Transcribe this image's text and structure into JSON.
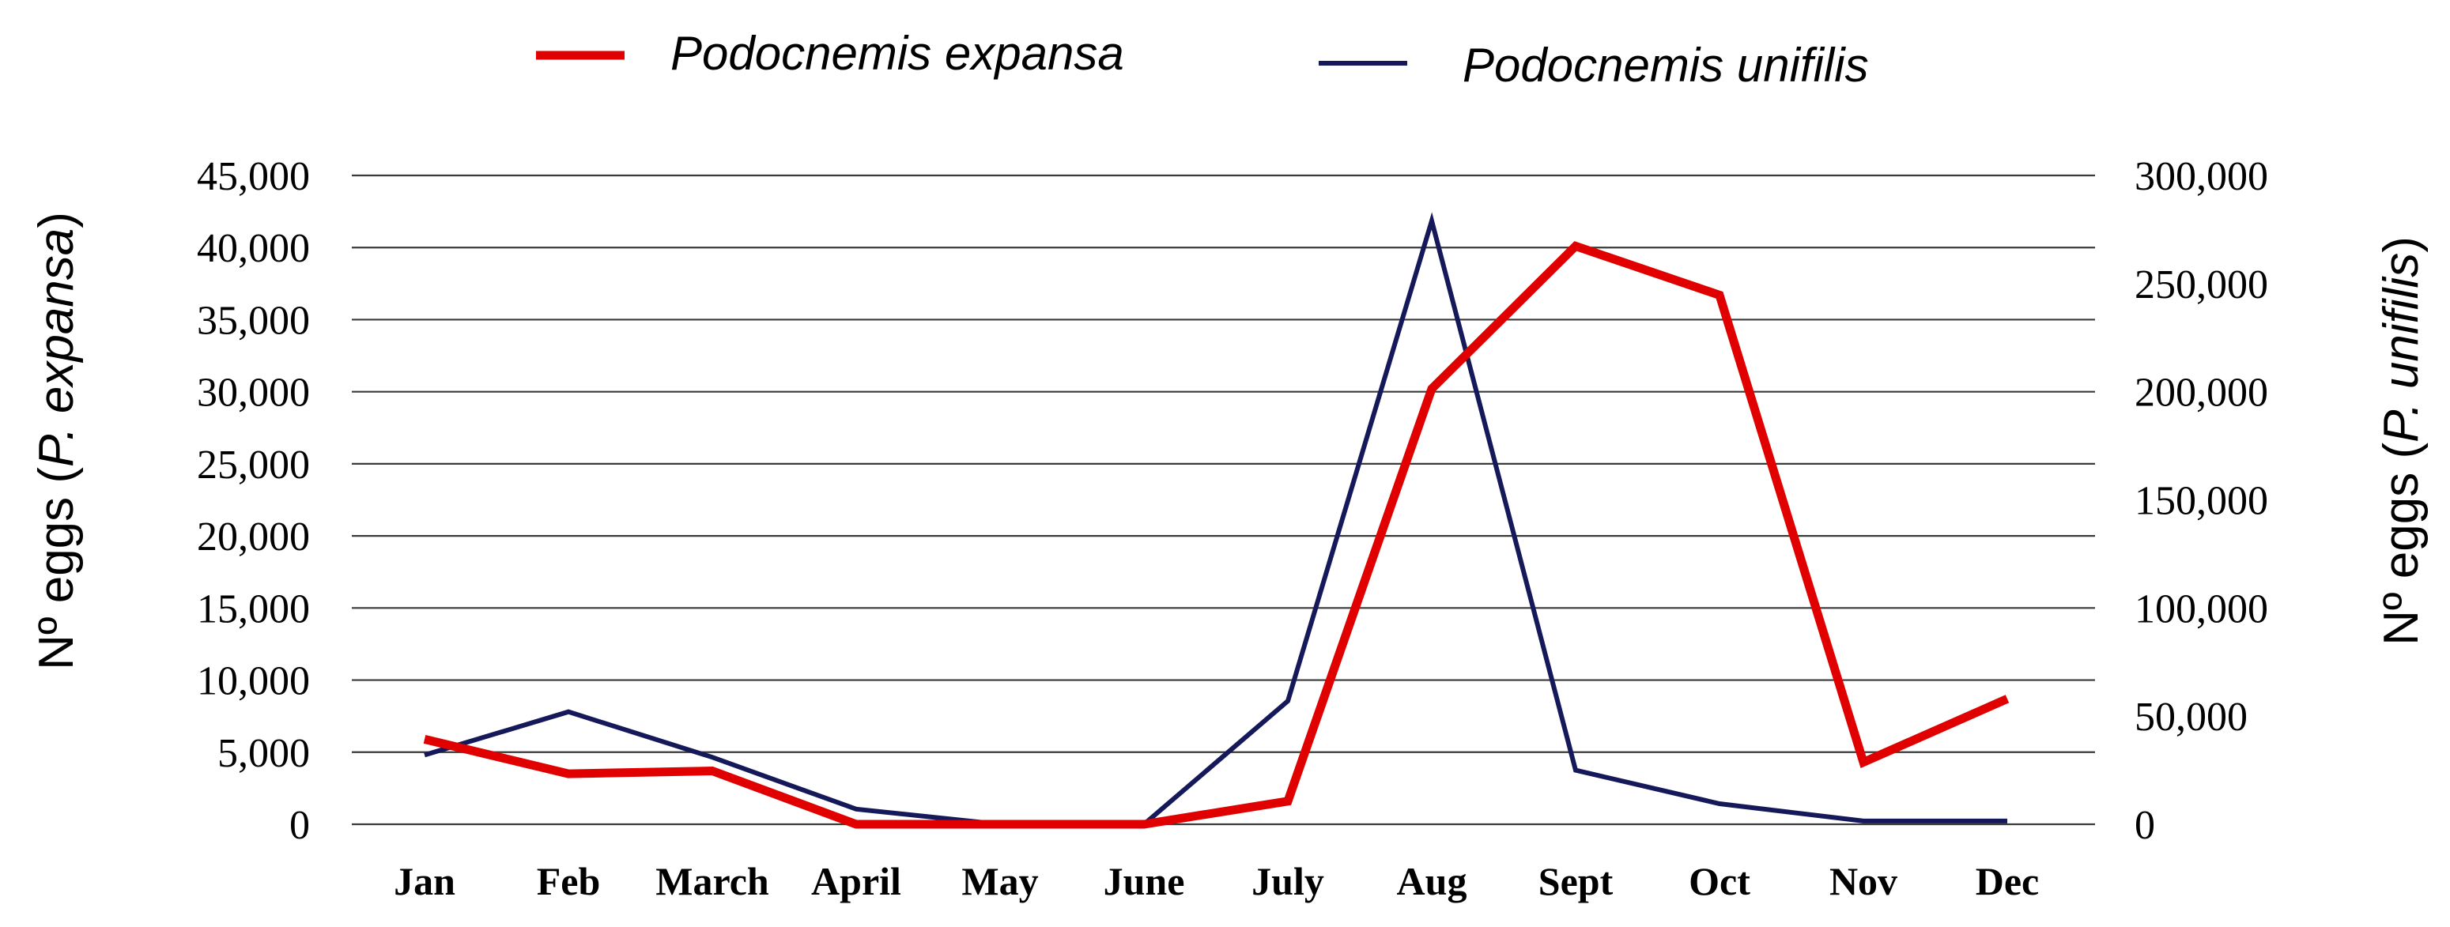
{
  "chart_data": {
    "type": "line",
    "categories": [
      "Jan",
      "Feb",
      "March",
      "April",
      "May",
      "June",
      "July",
      "Aug",
      "Sept",
      "Oct",
      "Nov",
      "Dec"
    ],
    "series": [
      {
        "name": "Podocnemis expansa",
        "axis": "left",
        "color": "#e00000",
        "values": [
          5900,
          3500,
          3700,
          0,
          0,
          0,
          1600,
          30200,
          40100,
          36700,
          4300,
          8700
        ]
      },
      {
        "name": "Podocnemis unifilis",
        "axis": "right",
        "color": "#15195a",
        "values": [
          32000,
          52000,
          31000,
          7000,
          0,
          0,
          57000,
          279000,
          25000,
          9500,
          1500,
          1500
        ]
      }
    ],
    "ylim_left": [
      0,
      45000
    ],
    "ylim_right": [
      0,
      300000
    ],
    "yticks_left": [
      "0",
      "5,000",
      "10,000",
      "15,000",
      "20,000",
      "25,000",
      "30,000",
      "35,000",
      "40,000",
      "45,000"
    ],
    "yticks_right": [
      "0",
      "50,000",
      "100,000",
      "150,000",
      "200,000",
      "250,000",
      "300,000"
    ],
    "ylabel_left_prefix": "Nº eggs (",
    "ylabel_left_italic": "P. expansa",
    "ylabel_left_suffix": ")",
    "ylabel_right_prefix": "Nº eggs (",
    "ylabel_right_italic": "P. unifilis",
    "ylabel_right_suffix": ")",
    "grid": true,
    "legend_position": "top"
  }
}
